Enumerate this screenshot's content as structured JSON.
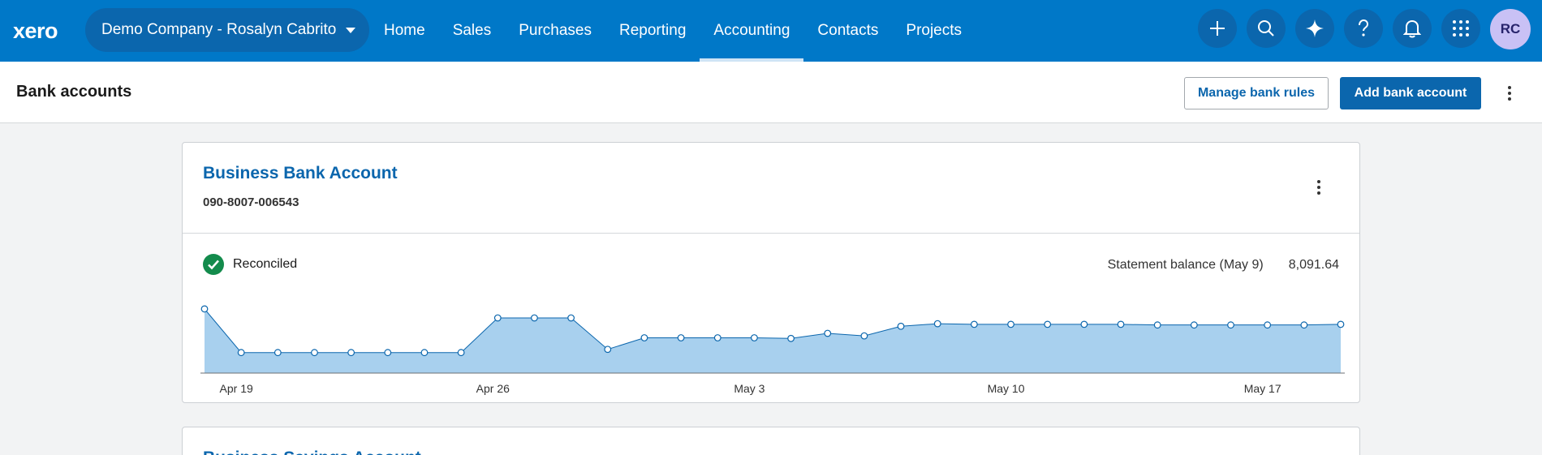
{
  "app": {
    "logo_text": "xero",
    "brand_color": "#0078c8"
  },
  "org_switcher": {
    "label": "Demo Company - Rosalyn Cabrito"
  },
  "nav": [
    {
      "label": "Home",
      "active": false
    },
    {
      "label": "Sales",
      "active": false
    },
    {
      "label": "Purchases",
      "active": false
    },
    {
      "label": "Reporting",
      "active": false
    },
    {
      "label": "Accounting",
      "active": true
    },
    {
      "label": "Contacts",
      "active": false
    },
    {
      "label": "Projects",
      "active": false
    }
  ],
  "top_icons": [
    "plus-icon",
    "search-icon",
    "sparkle-icon",
    "help-icon",
    "bell-icon",
    "apps-grid-icon"
  ],
  "user": {
    "initials": "RC"
  },
  "page": {
    "title": "Bank accounts",
    "manage_rules_label": "Manage bank rules",
    "add_account_label": "Add bank account"
  },
  "accounts": [
    {
      "name": "Business Bank Account",
      "number": "090-8007-006543",
      "status": "Reconciled",
      "balance_label": "Statement balance (May 9)",
      "balance_value": "8,091.64"
    },
    {
      "name": "Business Savings Account"
    }
  ],
  "chart_data": {
    "type": "area",
    "x": [
      "Apr 18",
      "Apr 19",
      "Apr 20",
      "Apr 21",
      "Apr 22",
      "Apr 23",
      "Apr 24",
      "Apr 25",
      "Apr 26",
      "Apr 27",
      "Apr 28",
      "Apr 29",
      "Apr 30",
      "May 1",
      "May 2",
      "May 3",
      "May 4",
      "May 5",
      "May 6",
      "May 7",
      "May 8",
      "May 9",
      "May 10",
      "May 11",
      "May 12",
      "May 13",
      "May 14",
      "May 15",
      "May 16",
      "May 17",
      "May 18",
      "May 19"
    ],
    "values": [
      10000,
      3200,
      3200,
      3200,
      3200,
      3200,
      3200,
      3200,
      8600,
      8600,
      8600,
      3700,
      5500,
      5500,
      5500,
      5500,
      5400,
      6200,
      5800,
      7300,
      7700,
      7600,
      7600,
      7600,
      7600,
      7600,
      7500,
      7500,
      7500,
      7500,
      7500,
      7600
    ],
    "tick_labels": [
      "Apr 19",
      "Apr 26",
      "May 3",
      "May 10",
      "May 17"
    ],
    "tick_indices": [
      1,
      8,
      15,
      22,
      29
    ],
    "ylim": [
      0,
      11000
    ],
    "fill_color": "#a8d0ee",
    "line_color": "#0b66ad",
    "grid": false
  }
}
